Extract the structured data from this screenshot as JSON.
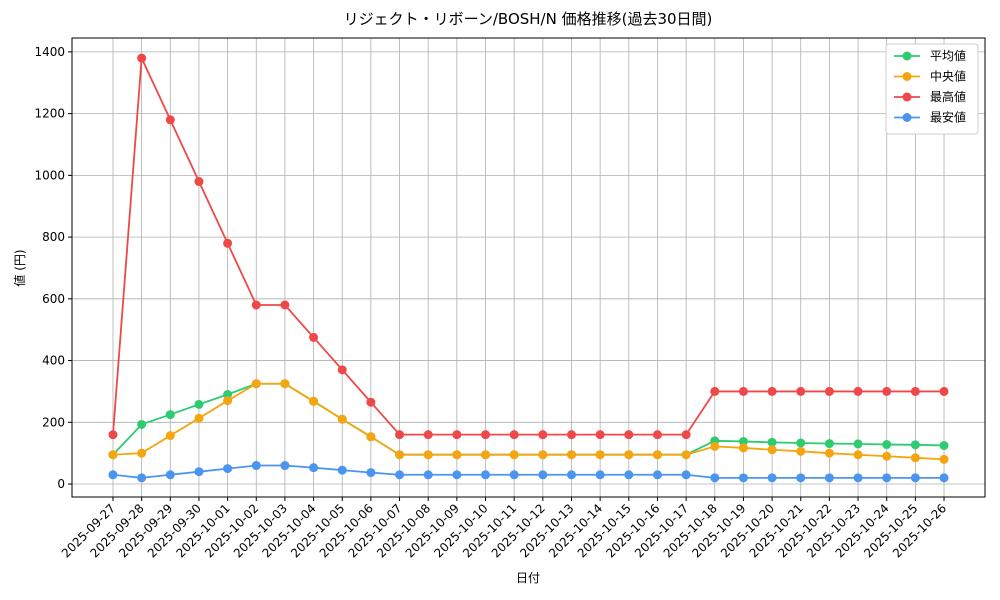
{
  "chart_data": {
    "type": "line",
    "title": "リジェクト・リボーン/BOSH/N 価格推移(過去30日間)",
    "x_label": "日付",
    "y_label": "値 (円)",
    "x": [
      "2025-09-27",
      "2025-09-28",
      "2025-09-29",
      "2025-09-30",
      "2025-10-01",
      "2025-10-02",
      "2025-10-03",
      "2025-10-04",
      "2025-10-05",
      "2025-10-06",
      "2025-10-07",
      "2025-10-08",
      "2025-10-09",
      "2025-10-10",
      "2025-10-11",
      "2025-10-12",
      "2025-10-13",
      "2025-10-14",
      "2025-10-15",
      "2025-10-16",
      "2025-10-17",
      "2025-10-18",
      "2025-10-19",
      "2025-10-20",
      "2025-10-21",
      "2025-10-22",
      "2025-10-23",
      "2025-10-24",
      "2025-10-25",
      "2025-10-26"
    ],
    "series": [
      {
        "name": "平均値",
        "color": "#2ecc71",
        "values": [
          95,
          193,
          225,
          258,
          290,
          325,
          325,
          268,
          210,
          153,
          95,
          95,
          95,
          95,
          95,
          95,
          95,
          95,
          95,
          95,
          95,
          140,
          138,
          135,
          133,
          131,
          130,
          128,
          127,
          125
        ]
      },
      {
        "name": "中央値",
        "color": "#f5a50f",
        "values": [
          95,
          100,
          157,
          213,
          270,
          325,
          325,
          268,
          210,
          153,
          95,
          95,
          95,
          95,
          95,
          95,
          95,
          95,
          95,
          95,
          95,
          122,
          117,
          111,
          106,
          100,
          95,
          90,
          85,
          80
        ]
      },
      {
        "name": "最高値",
        "color": "#ef4848",
        "values": [
          160,
          1380,
          1180,
          980,
          780,
          580,
          580,
          475,
          370,
          265,
          160,
          160,
          160,
          160,
          160,
          160,
          160,
          160,
          160,
          160,
          160,
          300,
          300,
          300,
          300,
          300,
          300,
          300,
          300,
          300
        ]
      },
      {
        "name": "最安値",
        "color": "#4b95f0",
        "values": [
          30,
          20,
          30,
          40,
          50,
          60,
          60,
          53,
          45,
          37,
          30,
          30,
          30,
          30,
          30,
          30,
          30,
          30,
          30,
          30,
          30,
          20,
          20,
          20,
          20,
          20,
          20,
          20,
          20,
          20
        ]
      }
    ],
    "ylim": [
      -42,
      1445
    ],
    "yticks": [
      0,
      200,
      400,
      600,
      800,
      1000,
      1200,
      1400
    ],
    "grid": true,
    "legend": "upper-right"
  }
}
